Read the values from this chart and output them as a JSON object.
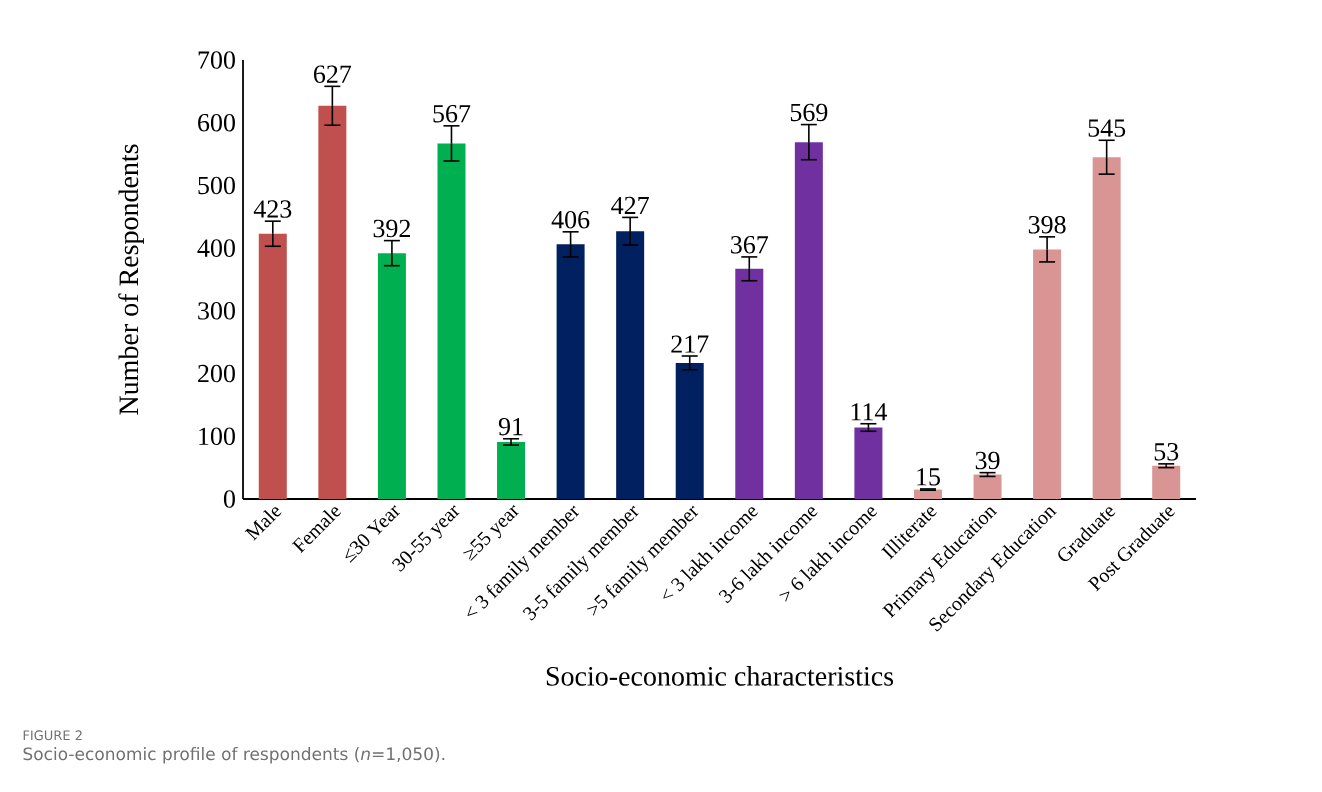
{
  "chart_data": {
    "type": "bar",
    "xlabel": "Socio-economic characteristics",
    "ylabel": "Number of Respondents",
    "annotations": [
      "FIGURE 2",
      "Socio-economic profile of respondents (*n*=1,050)."
    ],
    "categories": [
      "Male",
      "Female",
      "≤30 Year",
      "30-55 year",
      "≥55 year",
      "< 3 family member",
      "3-5 family member",
      ">5 family member",
      "< 3 lakh income",
      "3-6 lakh income",
      "> 6 lakh income",
      "Illiterate",
      "Primary Education",
      "Secondary Education",
      "Graduate",
      "Post Graduate"
    ],
    "values": [
      423,
      627,
      392,
      567,
      91,
      406,
      427,
      217,
      367,
      569,
      114,
      15,
      39,
      398,
      545,
      53
    ],
    "errors": [
      20,
      31,
      20,
      28,
      5,
      20,
      22,
      11,
      19,
      28,
      6,
      1,
      3,
      20,
      27,
      3
    ],
    "colors": [
      "#c0504d",
      "#c0504d",
      "#00b050",
      "#00b050",
      "#00b050",
      "#002060",
      "#002060",
      "#002060",
      "#7030a0",
      "#7030a0",
      "#7030a0",
      "#d99594",
      "#d99594",
      "#d99594",
      "#d99594",
      "#d99594"
    ],
    "ylim": [
      0,
      700
    ],
    "yticks": [
      0,
      100,
      200,
      300,
      400,
      500,
      600,
      700
    ],
    "data_labels": true
  }
}
